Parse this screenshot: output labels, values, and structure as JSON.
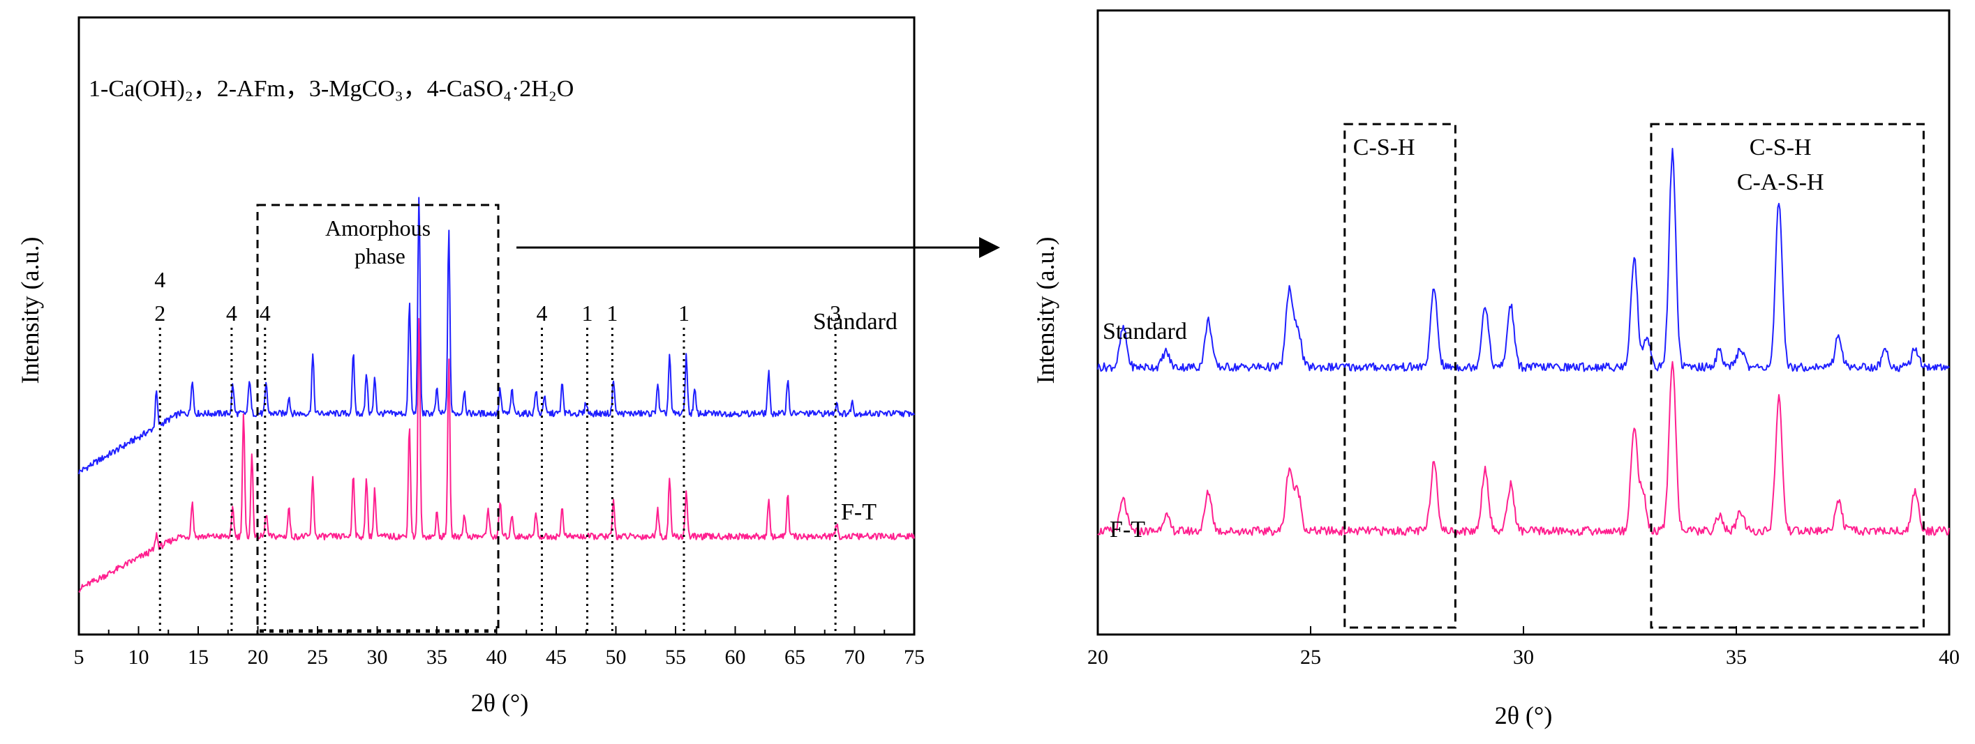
{
  "chart_data": [
    {
      "type": "line",
      "title": "",
      "xlabel": "2θ (°)",
      "ylabel": "Intensity (a.u.)",
      "xlim": [
        5,
        75
      ],
      "x_ticks": [
        "5",
        "10",
        "15",
        "20",
        "25",
        "30",
        "35",
        "40",
        "45",
        "50",
        "55",
        "60",
        "65",
        "70",
        "75"
      ],
      "legend_text": "1-Ca(OH)₂，2-AFm，3-MgCO₃，4-CaSO₄·2H₂O",
      "box_label_1": "Amorphous",
      "box_label_2": "phase",
      "amorphous_range": [
        20,
        40
      ],
      "series": [
        {
          "name": "Standard",
          "color": "#1f1fff",
          "baseline": 0.6,
          "start": 0.4,
          "peaks": [
            [
              11.5,
              0.12
            ],
            [
              14.5,
              0.12
            ],
            [
              17.9,
              0.1
            ],
            [
              19.3,
              0.12
            ],
            [
              20.7,
              0.1
            ],
            [
              22.6,
              0.06
            ],
            [
              24.6,
              0.2
            ],
            [
              28.0,
              0.2
            ],
            [
              29.1,
              0.14
            ],
            [
              29.8,
              0.12
            ],
            [
              32.7,
              0.38
            ],
            [
              33.5,
              0.74
            ],
            [
              35.0,
              0.08
            ],
            [
              36.0,
              0.62
            ],
            [
              37.3,
              0.08
            ],
            [
              40.3,
              0.08
            ],
            [
              41.3,
              0.08
            ],
            [
              43.3,
              0.08
            ],
            [
              44.0,
              0.06
            ],
            [
              45.5,
              0.1
            ],
            [
              47.5,
              0.04
            ],
            [
              49.8,
              0.12
            ],
            [
              53.5,
              0.1
            ],
            [
              54.5,
              0.2
            ],
            [
              55.9,
              0.2
            ],
            [
              56.6,
              0.08
            ],
            [
              62.8,
              0.14
            ],
            [
              64.4,
              0.12
            ],
            [
              68.5,
              0.04
            ],
            [
              69.8,
              0.04
            ]
          ]
        },
        {
          "name": "F-T",
          "color": "#ff1f8f",
          "baseline": 0.18,
          "start": 0.0,
          "peaks": [
            [
              11.5,
              0.05
            ],
            [
              14.5,
              0.12
            ],
            [
              17.9,
              0.1
            ],
            [
              18.8,
              0.42
            ],
            [
              19.5,
              0.28
            ],
            [
              20.7,
              0.08
            ],
            [
              22.6,
              0.1
            ],
            [
              24.6,
              0.2
            ],
            [
              28.0,
              0.22
            ],
            [
              29.1,
              0.2
            ],
            [
              29.8,
              0.16
            ],
            [
              32.7,
              0.38
            ],
            [
              33.5,
              0.75
            ],
            [
              35.0,
              0.08
            ],
            [
              36.0,
              0.6
            ],
            [
              37.3,
              0.08
            ],
            [
              39.3,
              0.1
            ],
            [
              40.3,
              0.12
            ],
            [
              41.3,
              0.08
            ],
            [
              43.3,
              0.08
            ],
            [
              45.5,
              0.1
            ],
            [
              49.8,
              0.12
            ],
            [
              53.5,
              0.1
            ],
            [
              54.5,
              0.2
            ],
            [
              55.9,
              0.16
            ],
            [
              62.8,
              0.12
            ],
            [
              64.4,
              0.14
            ],
            [
              68.5,
              0.04
            ]
          ]
        }
      ],
      "phase_markers": [
        {
          "x": 11.8,
          "labels": [
            "4",
            "2"
          ]
        },
        {
          "x": 17.8,
          "labels": [
            "4"
          ]
        },
        {
          "x": 20.6,
          "labels": [
            "4"
          ]
        },
        {
          "x": 43.8,
          "labels": [
            "4"
          ]
        },
        {
          "x": 47.6,
          "labels": [
            "1"
          ]
        },
        {
          "x": 49.7,
          "labels": [
            "1"
          ]
        },
        {
          "x": 55.7,
          "labels": [
            "1"
          ]
        },
        {
          "x": 68.4,
          "labels": [
            "3"
          ]
        }
      ]
    },
    {
      "type": "line",
      "title": "",
      "xlabel": "2θ (°)",
      "ylabel": "Intensity (a.u.)",
      "xlim": [
        20,
        40
      ],
      "x_ticks": [
        "20",
        "25",
        "30",
        "35",
        "40"
      ],
      "regions": [
        {
          "x": [
            25.8,
            28.4
          ],
          "labels": [
            "C-S-H"
          ]
        },
        {
          "x": [
            33.0,
            39.4
          ],
          "labels": [
            "C-S-H",
            "C-A-S-H"
          ]
        }
      ],
      "series": [
        {
          "name": "Standard",
          "color": "#1f1fff",
          "baseline": 0.56,
          "start": 0.56,
          "peaks": [
            [
              20.6,
              0.1
            ],
            [
              21.6,
              0.04
            ],
            [
              22.6,
              0.12
            ],
            [
              24.5,
              0.2
            ],
            [
              24.7,
              0.1
            ],
            [
              27.9,
              0.2
            ],
            [
              29.1,
              0.16
            ],
            [
              29.7,
              0.16
            ],
            [
              32.6,
              0.28
            ],
            [
              32.9,
              0.08
            ],
            [
              33.5,
              0.55
            ],
            [
              34.6,
              0.04
            ],
            [
              35.1,
              0.05
            ],
            [
              36.0,
              0.42
            ],
            [
              37.4,
              0.08
            ],
            [
              38.5,
              0.04
            ],
            [
              39.2,
              0.05
            ]
          ]
        },
        {
          "name": "F-T",
          "color": "#ff1f8f",
          "baseline": 0.14,
          "start": 0.14,
          "peaks": [
            [
              20.6,
              0.08
            ],
            [
              21.6,
              0.04
            ],
            [
              22.6,
              0.1
            ],
            [
              24.5,
              0.16
            ],
            [
              24.7,
              0.1
            ],
            [
              27.9,
              0.18
            ],
            [
              29.1,
              0.16
            ],
            [
              29.7,
              0.12
            ],
            [
              32.6,
              0.26
            ],
            [
              32.8,
              0.1
            ],
            [
              33.5,
              0.44
            ],
            [
              34.6,
              0.04
            ],
            [
              35.1,
              0.05
            ],
            [
              36.0,
              0.34
            ],
            [
              37.4,
              0.08
            ],
            [
              39.2,
              0.1
            ]
          ]
        }
      ]
    }
  ]
}
